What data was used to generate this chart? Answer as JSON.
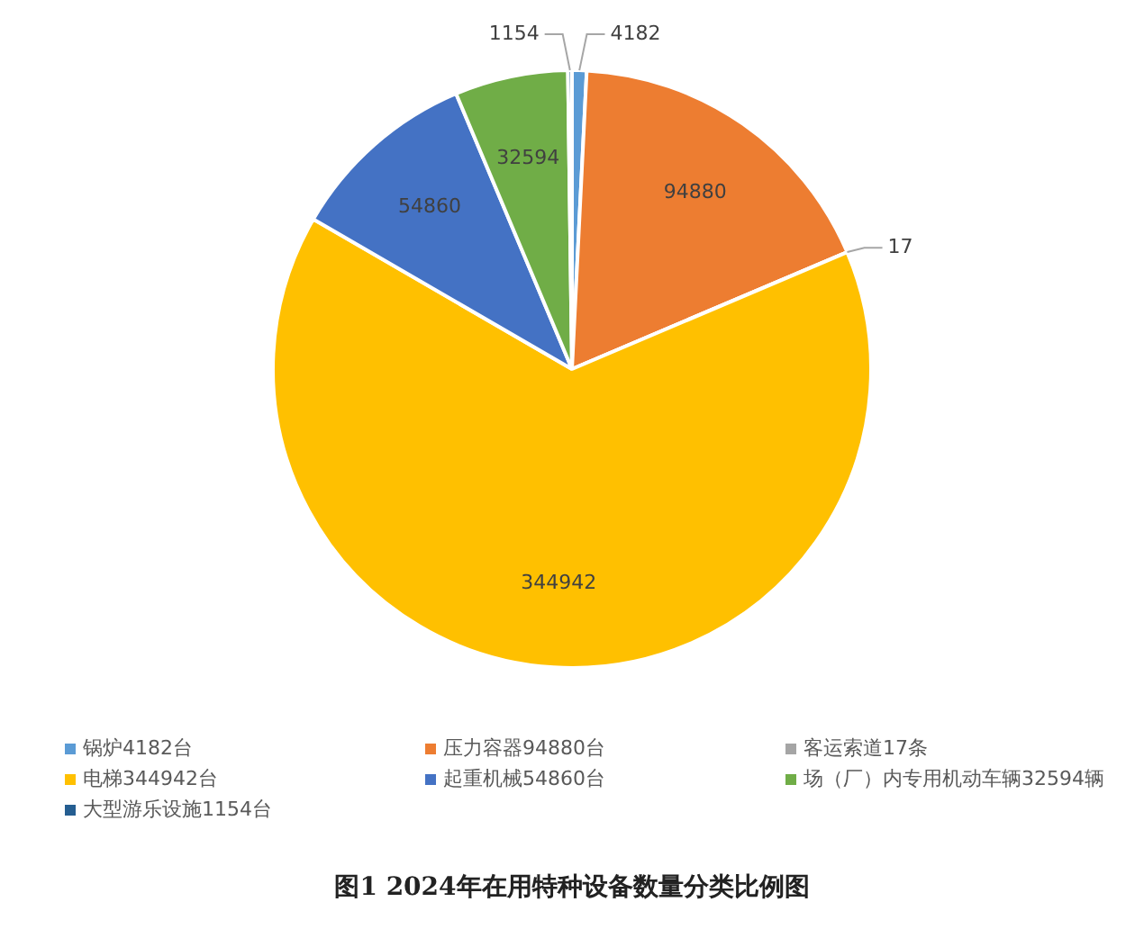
{
  "chart_data": {
    "type": "pie",
    "title": "图1 2024年在用特种设备数量分类比例图",
    "categories": [
      "锅炉4182台",
      "压力容器94880台",
      "客运索道17条",
      "电梯344942台",
      "起重机械54860台",
      "场（厂）内专用机动车辆32594辆",
      "大型游乐设施1154台"
    ],
    "values": [
      4182,
      94880,
      17,
      344942,
      54860,
      32594,
      1154
    ],
    "colors": [
      "#5b9bd5",
      "#ed7d31",
      "#a5a5a5",
      "#ffc000",
      "#4472c4",
      "#70ad47",
      "#255e91"
    ],
    "data_labels": true,
    "legend": "bottom"
  }
}
